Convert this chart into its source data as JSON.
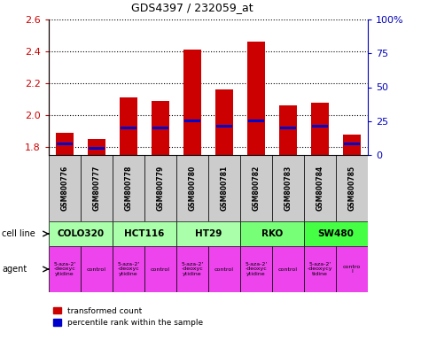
{
  "title": "GDS4397 / 232059_at",
  "samples": [
    "GSM800776",
    "GSM800777",
    "GSM800778",
    "GSM800779",
    "GSM800780",
    "GSM800781",
    "GSM800782",
    "GSM800783",
    "GSM800784",
    "GSM800785"
  ],
  "transformed_count": [
    1.89,
    1.85,
    2.11,
    2.09,
    2.41,
    2.16,
    2.46,
    2.06,
    2.08,
    1.88
  ],
  "percentile_rank": [
    8,
    5,
    20,
    20,
    25,
    21,
    25,
    20,
    21,
    8
  ],
  "ylim_left": [
    1.75,
    2.6
  ],
  "ylim_right": [
    0,
    100
  ],
  "yticks_left": [
    1.8,
    2.0,
    2.2,
    2.4,
    2.6
  ],
  "yticks_right": [
    0,
    25,
    50,
    75,
    100
  ],
  "cell_lines": [
    {
      "label": "COLO320",
      "start": 0,
      "end": 2,
      "color": "#aaffaa"
    },
    {
      "label": "HCT116",
      "start": 2,
      "end": 4,
      "color": "#aaffaa"
    },
    {
      "label": "HT29",
      "start": 4,
      "end": 6,
      "color": "#aaffaa"
    },
    {
      "label": "RKO",
      "start": 6,
      "end": 8,
      "color": "#77ff77"
    },
    {
      "label": "SW480",
      "start": 8,
      "end": 10,
      "color": "#44ff44"
    }
  ],
  "agents": [
    {
      "label": "5-aza-2'\n-deoxyc\nytidine",
      "start": 0,
      "end": 1,
      "color": "#ee44ee"
    },
    {
      "label": "control",
      "start": 1,
      "end": 2,
      "color": "#ee44ee"
    },
    {
      "label": "5-aza-2'\n-deoxyc\nytidine",
      "start": 2,
      "end": 3,
      "color": "#ee44ee"
    },
    {
      "label": "control",
      "start": 3,
      "end": 4,
      "color": "#ee44ee"
    },
    {
      "label": "5-aza-2'\n-deoxyc\nytidine",
      "start": 4,
      "end": 5,
      "color": "#ee44ee"
    },
    {
      "label": "control",
      "start": 5,
      "end": 6,
      "color": "#ee44ee"
    },
    {
      "label": "5-aza-2'\n-deoxyc\nytidine",
      "start": 6,
      "end": 7,
      "color": "#ee44ee"
    },
    {
      "label": "control",
      "start": 7,
      "end": 8,
      "color": "#ee44ee"
    },
    {
      "label": "5-aza-2'\n-deoxycy\ntidine",
      "start": 8,
      "end": 9,
      "color": "#ee44ee"
    },
    {
      "label": "contro\nl",
      "start": 9,
      "end": 10,
      "color": "#ee44ee"
    }
  ],
  "bar_color_red": "#cc0000",
  "bar_color_blue": "#0000cc",
  "bar_width": 0.55,
  "sample_bg_color": "#cccccc",
  "left_axis_color": "#cc0000",
  "right_axis_color": "#0000bb"
}
